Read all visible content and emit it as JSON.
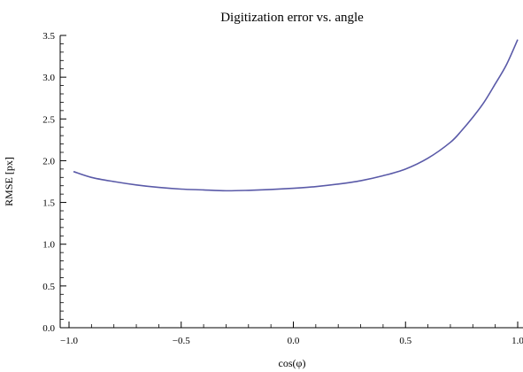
{
  "chart_data": {
    "type": "line",
    "title": "Digitization error vs. angle",
    "xlabel": "cos(φ)",
    "ylabel": "RMSE [px]",
    "xlim": [
      -1.0,
      1.0
    ],
    "ylim": [
      0.0,
      3.5
    ],
    "x_ticks": [
      "-1.0",
      "-0.5",
      "0.0",
      "0.5",
      "1.0"
    ],
    "x_tick_values": [
      -1.0,
      -0.5,
      0.0,
      0.5,
      1.0
    ],
    "y_ticks": [
      "0.0",
      "0.5",
      "1.0",
      "1.5",
      "2.0",
      "2.5",
      "3.0",
      "3.5"
    ],
    "y_tick_values": [
      0.0,
      0.5,
      1.0,
      1.5,
      2.0,
      2.5,
      3.0,
      3.5
    ],
    "grid": false,
    "series": [
      {
        "color": "#5a5aa8",
        "x": [
          -0.98,
          -0.9,
          -0.8,
          -0.7,
          -0.6,
          -0.5,
          -0.4,
          -0.3,
          -0.2,
          -0.1,
          0.0,
          0.1,
          0.2,
          0.3,
          0.4,
          0.5,
          0.6,
          0.7,
          0.75,
          0.8,
          0.85,
          0.9,
          0.95,
          1.0
        ],
        "y": [
          1.87,
          1.8,
          1.75,
          1.71,
          1.68,
          1.66,
          1.65,
          1.64,
          1.645,
          1.655,
          1.67,
          1.69,
          1.72,
          1.76,
          1.82,
          1.9,
          2.03,
          2.22,
          2.36,
          2.52,
          2.7,
          2.92,
          3.15,
          3.45
        ]
      }
    ]
  }
}
